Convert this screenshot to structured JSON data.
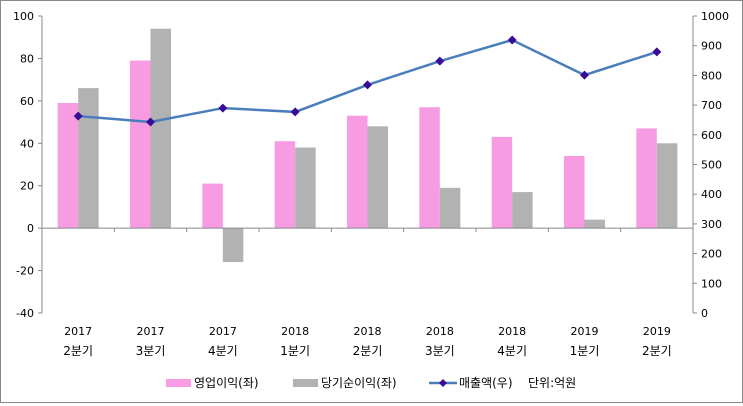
{
  "chart_data": {
    "type": "bar",
    "title": "",
    "categories": [
      {
        "year": "2017",
        "quarter": "2분기"
      },
      {
        "year": "2017",
        "quarter": "3분기"
      },
      {
        "year": "2017",
        "quarter": "4분기"
      },
      {
        "year": "2018",
        "quarter": "1분기"
      },
      {
        "year": "2018",
        "quarter": "2분기"
      },
      {
        "year": "2018",
        "quarter": "3분기"
      },
      {
        "year": "2018",
        "quarter": "4분기"
      },
      {
        "year": "2019",
        "quarter": "1분기"
      },
      {
        "year": "2019",
        "quarter": "2분기"
      }
    ],
    "series": [
      {
        "name": "영업이익(좌)",
        "type": "bar",
        "axis": "left",
        "color": "#f79be3",
        "values": [
          59,
          79,
          21,
          41,
          53,
          57,
          43,
          34,
          47
        ]
      },
      {
        "name": "당기순이익(좌)",
        "type": "bar",
        "axis": "left",
        "color": "#b2b2b2",
        "values": [
          66,
          94,
          -16,
          38,
          48,
          19,
          17,
          4,
          40
        ]
      },
      {
        "name": "매출액(우)",
        "type": "line",
        "axis": "right",
        "color": "#4a7ebb",
        "marker_color": "#3a0a99",
        "values": [
          663,
          643,
          690,
          677,
          768,
          848,
          919,
          801,
          879
        ]
      }
    ],
    "left_axis": {
      "ylim": [
        -40,
        100
      ],
      "ticks": [
        "-40",
        "-20",
        "0",
        "20",
        "40",
        "60",
        "80",
        "100"
      ]
    },
    "right_axis": {
      "ylim": [
        0,
        1000
      ],
      "ticks": [
        "0",
        "100",
        "200",
        "300",
        "400",
        "500",
        "600",
        "700",
        "800",
        "900",
        "1000"
      ]
    },
    "unit_note": "단위:억원",
    "legend_position": "bottom",
    "grid": false
  }
}
